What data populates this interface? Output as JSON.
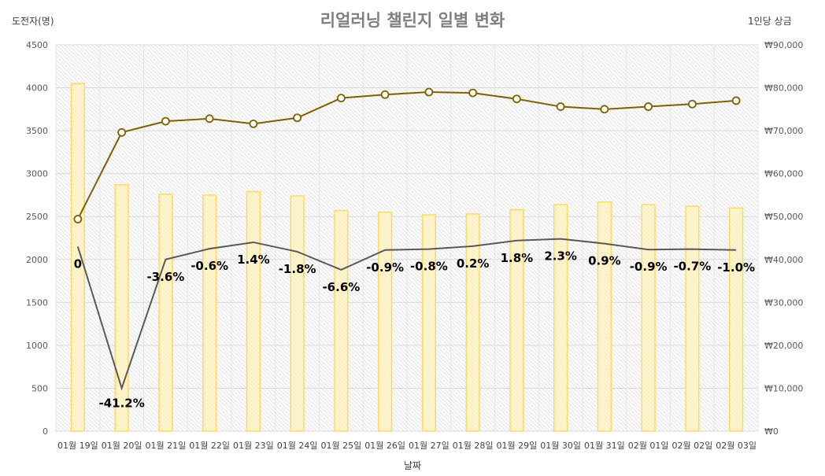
{
  "chart_data": {
    "type": "bar+line",
    "title": "리얼러닝 챌린지 일별 변화",
    "xlabel": "날짜",
    "ylabel_left": "도전자(명)",
    "ylabel_right": "1인당 상금",
    "ylim_left": [
      0,
      4500
    ],
    "ylim_right": [
      0,
      90000
    ],
    "yticks_left": [
      "0",
      "500",
      "1000",
      "1500",
      "2000",
      "2500",
      "3000",
      "3500",
      "4000",
      "4500"
    ],
    "yticks_right": [
      "₩0",
      "₩10,000",
      "₩20,000",
      "₩30,000",
      "₩40,000",
      "₩50,000",
      "₩60,000",
      "₩70,000",
      "₩80,000",
      "₩90,000"
    ],
    "categories": [
      "01월 19일",
      "01월 20일",
      "01월 21일",
      "01월 22일",
      "01월 23일",
      "01월 24일",
      "01월 25일",
      "01월 26일",
      "01월 27일",
      "01월 28일",
      "01월 29일",
      "01월 30일",
      "01월 31일",
      "02월 01일",
      "02월 02일",
      "02월 03일"
    ],
    "series": [
      {
        "kind": "bar",
        "axis": "left",
        "color": "#ffd966",
        "values": [
          4050,
          2870,
          2760,
          2750,
          2790,
          2740,
          2570,
          2550,
          2520,
          2530,
          2580,
          2640,
          2670,
          2640,
          2620,
          2600
        ]
      },
      {
        "kind": "line-marker",
        "axis": "left",
        "color": "#7f6000",
        "values": [
          2470,
          3480,
          3610,
          3640,
          3580,
          3650,
          3880,
          3920,
          3950,
          3940,
          3870,
          3780,
          3750,
          3780,
          3810,
          3850
        ]
      },
      {
        "kind": "line",
        "axis": "right",
        "color": "#595959",
        "values": [
          43000,
          10000,
          40000,
          42500,
          44000,
          41800,
          37600,
          42200,
          42400,
          43100,
          44400,
          44800,
          43700,
          42300,
          42400,
          42200
        ],
        "data_labels": [
          "0",
          "-41.2%",
          "-3.6%",
          "-0.6%",
          "1.4%",
          "-1.8%",
          "-6.6%",
          "-0.9%",
          "-0.8%",
          "0.2%",
          "1.8%",
          "2.3%",
          "0.9%",
          "-0.9%",
          "-0.7%",
          "-1.0%"
        ]
      }
    ],
    "grid": true,
    "legend": "none"
  }
}
